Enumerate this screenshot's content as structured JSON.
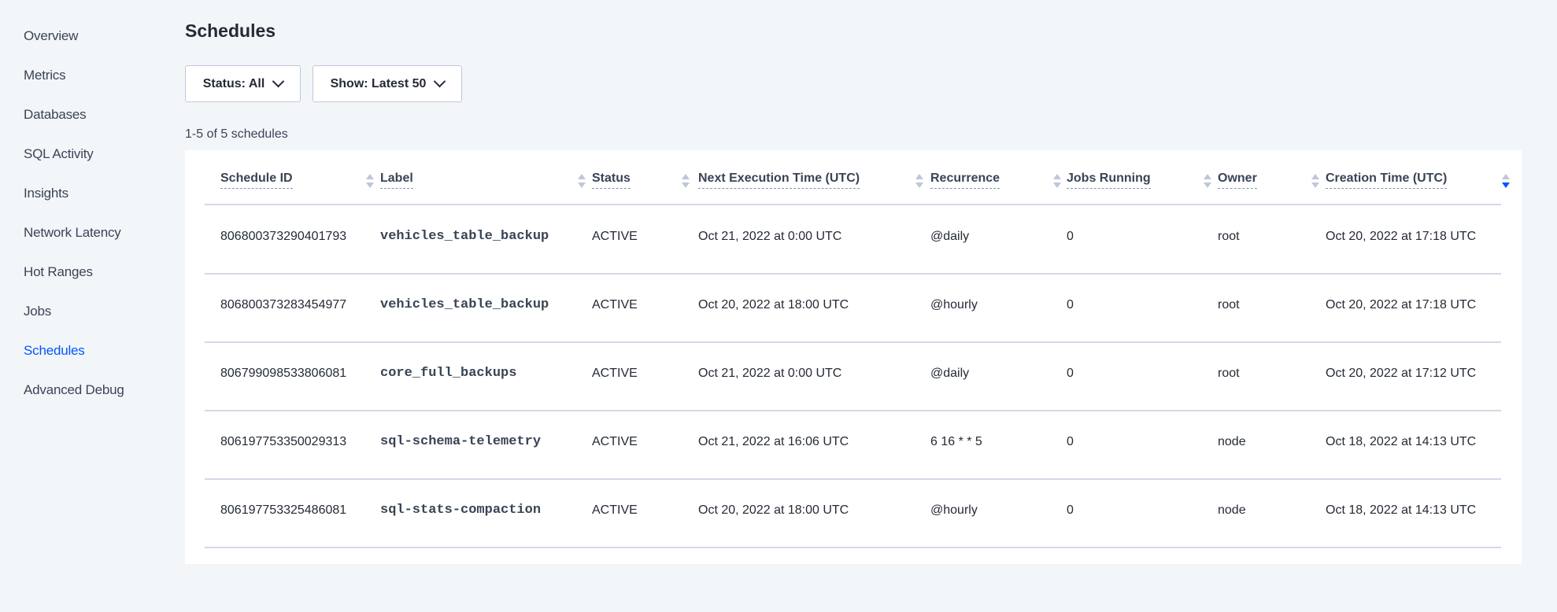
{
  "sidebar": {
    "items": [
      {
        "label": "Overview",
        "active": false
      },
      {
        "label": "Metrics",
        "active": false
      },
      {
        "label": "Databases",
        "active": false
      },
      {
        "label": "SQL Activity",
        "active": false
      },
      {
        "label": "Insights",
        "active": false
      },
      {
        "label": "Network Latency",
        "active": false
      },
      {
        "label": "Hot Ranges",
        "active": false
      },
      {
        "label": "Jobs",
        "active": false
      },
      {
        "label": "Schedules",
        "active": true
      },
      {
        "label": "Advanced Debug",
        "active": false
      }
    ]
  },
  "page": {
    "title": "Schedules",
    "status_filter": "Status: All",
    "show_filter": "Show: Latest 50",
    "count": "1-5 of 5 schedules"
  },
  "table": {
    "columns": [
      "Schedule ID",
      "Label",
      "Status",
      "Next Execution Time (UTC)",
      "Recurrence",
      "Jobs Running",
      "Owner",
      "Creation Time (UTC)"
    ],
    "sorted_column": "Creation Time (UTC)",
    "sort_direction": "descending",
    "rows": [
      [
        "806800373290401793",
        "vehicles_table_backup",
        "ACTIVE",
        "Oct 21, 2022 at 0:00 UTC",
        "@daily",
        "0",
        "root",
        "Oct 20, 2022 at 17:18 UTC"
      ],
      [
        "806800373283454977",
        "vehicles_table_backup",
        "ACTIVE",
        "Oct 20, 2022 at 18:00 UTC",
        "@hourly",
        "0",
        "root",
        "Oct 20, 2022 at 17:18 UTC"
      ],
      [
        "806799098533806081",
        "core_full_backups",
        "ACTIVE",
        "Oct 21, 2022 at 0:00 UTC",
        "@daily",
        "0",
        "root",
        "Oct 20, 2022 at 17:12 UTC"
      ],
      [
        "806197753350029313",
        "sql-schema-telemetry",
        "ACTIVE",
        "Oct 21, 2022 at 16:06 UTC",
        "6 16 * * 5",
        "0",
        "node",
        "Oct 18, 2022 at 14:13 UTC"
      ],
      [
        "806197753325486081",
        "sql-stats-compaction",
        "ACTIVE",
        "Oct 20, 2022 at 18:00 UTC",
        "@hourly",
        "0",
        "node",
        "Oct 18, 2022 at 14:13 UTC"
      ]
    ]
  },
  "colors": {
    "accent": "#0055ff",
    "text": "#394455",
    "background": "#f3f6f9"
  }
}
